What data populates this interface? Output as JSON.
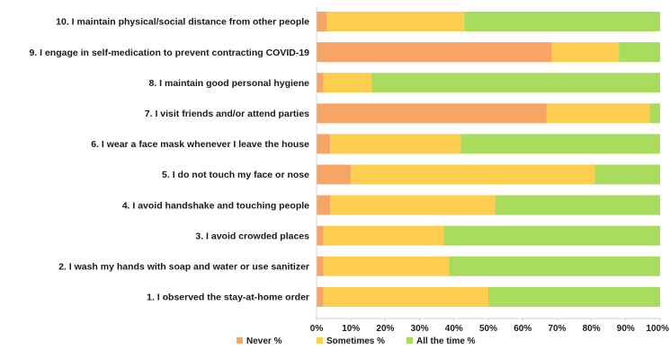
{
  "chart_data": {
    "type": "bar",
    "orientation": "horizontal",
    "stacked": true,
    "categories": [
      "10. I maintain physical/social distance from other people",
      "9. I engage in self-medication to prevent contracting COVID-19",
      "8. I maintain good personal hygiene",
      "7. I visit friends and/or attend parties",
      "6. I wear a face mask whenever I leave the house",
      "5. I do not touch my face or nose",
      "4. I avoid handshake and touching people",
      "3. I avoid crowded places",
      "2. I wash my hands with soap and water or use sanitizer",
      "1. I observed the stay-at-home order"
    ],
    "series": [
      {
        "name": "Never %",
        "color": "#F7A566",
        "values": [
          3,
          68.5,
          2,
          67,
          4,
          10,
          4,
          2,
          2,
          2
        ]
      },
      {
        "name": "Sometimes %",
        "color": "#FDCE4F",
        "values": [
          40,
          19.5,
          14,
          30,
          38,
          71,
          48,
          35,
          36.5,
          48
        ]
      },
      {
        "name": "All the time %",
        "color": "#A9DB5C",
        "values": [
          57,
          12,
          84,
          3,
          58,
          19,
          48,
          63,
          61.5,
          50
        ]
      }
    ],
    "xlim": [
      0,
      100
    ],
    "xticks": [
      "0%",
      "10%",
      "20%",
      "30%",
      "40%",
      "50%",
      "60%",
      "70%",
      "80%",
      "90%",
      "100%"
    ],
    "grid": false,
    "legend": "bottom",
    "title": "",
    "xlabel": "",
    "ylabel": ""
  }
}
